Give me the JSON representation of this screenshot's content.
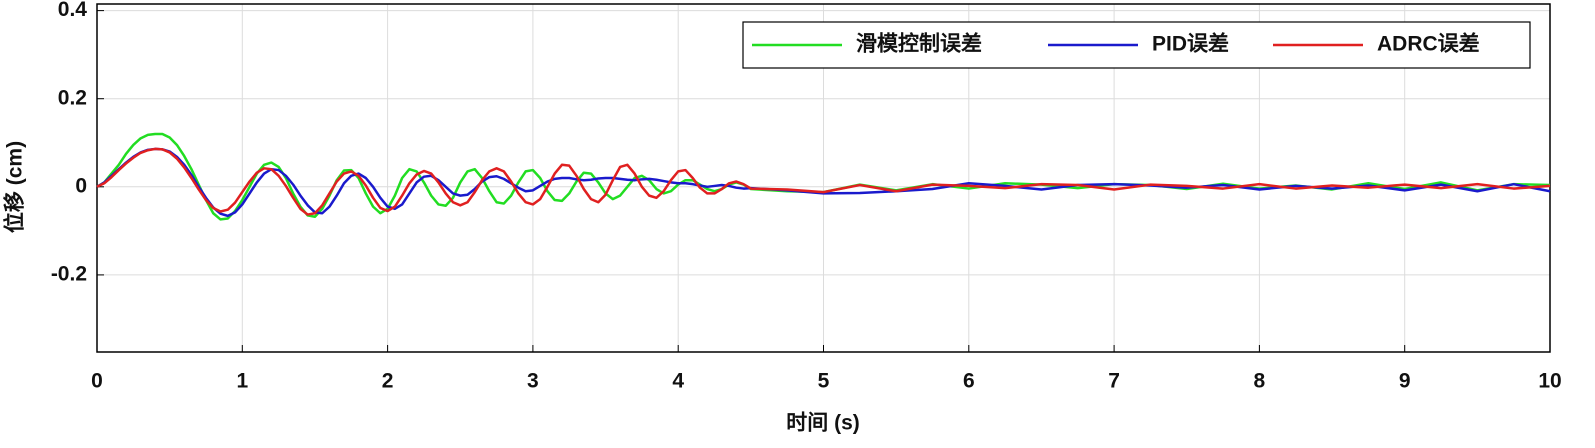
{
  "chart_data": {
    "type": "line",
    "xlabel": "时间 (s)",
    "ylabel": "位移 (cm)",
    "x": [
      0,
      0.05,
      0.1,
      0.15,
      0.2,
      0.25,
      0.3,
      0.35,
      0.4,
      0.45,
      0.5,
      0.55,
      0.6,
      0.65,
      0.7,
      0.75,
      0.8,
      0.85,
      0.9,
      0.95,
      1,
      1.05,
      1.1,
      1.15,
      1.2,
      1.25,
      1.3,
      1.35,
      1.4,
      1.45,
      1.5,
      1.55,
      1.6,
      1.65,
      1.7,
      1.75,
      1.8,
      1.85,
      1.9,
      1.95,
      2,
      2.05,
      2.1,
      2.15,
      2.2,
      2.25,
      2.3,
      2.35,
      2.4,
      2.45,
      2.5,
      2.55,
      2.6,
      2.65,
      2.7,
      2.75,
      2.8,
      2.85,
      2.9,
      2.95,
      3,
      3.05,
      3.1,
      3.15,
      3.2,
      3.25,
      3.3,
      3.35,
      3.4,
      3.45,
      3.5,
      3.55,
      3.6,
      3.65,
      3.7,
      3.75,
      3.8,
      3.85,
      3.9,
      3.95,
      4,
      4.05,
      4.1,
      4.15,
      4.2,
      4.25,
      4.3,
      4.35,
      4.4,
      4.45,
      4.5,
      4.75,
      5,
      5.25,
      5.5,
      5.75,
      6,
      6.25,
      6.5,
      6.75,
      7,
      7.25,
      7.5,
      7.75,
      8,
      8.25,
      8.5,
      8.75,
      9,
      9.25,
      9.5,
      9.75,
      10
    ],
    "series": [
      {
        "name": "滑模控制误差",
        "color": "#22dd22",
        "values": [
          0,
          0.01,
          0.03,
          0.05,
          0.075,
          0.095,
          0.11,
          0.118,
          0.12,
          0.12,
          0.112,
          0.095,
          0.07,
          0.04,
          0.005,
          -0.03,
          -0.06,
          -0.074,
          -0.072,
          -0.055,
          -0.03,
          0,
          0.03,
          0.05,
          0.055,
          0.045,
          0.02,
          -0.015,
          -0.045,
          -0.065,
          -0.068,
          -0.05,
          -0.02,
          0.015,
          0.037,
          0.038,
          0.02,
          -0.015,
          -0.045,
          -0.06,
          -0.05,
          -0.02,
          0.02,
          0.04,
          0.035,
          0.01,
          -0.02,
          -0.04,
          -0.043,
          -0.025,
          0.01,
          0.035,
          0.04,
          0.02,
          -0.01,
          -0.035,
          -0.038,
          -0.02,
          0.01,
          0.035,
          0.038,
          0.02,
          -0.01,
          -0.03,
          -0.032,
          -0.015,
          0.012,
          0.032,
          0.03,
          0.01,
          -0.015,
          -0.028,
          -0.02,
          0,
          0.02,
          0.025,
          0.015,
          -0.005,
          -0.015,
          -0.01,
          0.005,
          0.015,
          0.015,
          0.005,
          -0.005,
          -0.01,
          -0.005,
          0.005,
          0.01,
          0.005,
          -0.005,
          -0.01,
          -0.012,
          0.005,
          -0.008,
          0.006,
          -0.004,
          0.008,
          0.005,
          -0.003,
          0.006,
          0.004,
          -0.005,
          0.007,
          -0.004,
          0.003,
          -0.006,
          0.008,
          -0.005,
          0.01,
          -0.008,
          0.006,
          0.004
        ]
      },
      {
        "name": "PID误差",
        "color": "#1a1acc",
        "values": [
          0,
          0.01,
          0.025,
          0.04,
          0.055,
          0.068,
          0.078,
          0.084,
          0.086,
          0.085,
          0.08,
          0.068,
          0.05,
          0.027,
          0,
          -0.025,
          -0.047,
          -0.061,
          -0.066,
          -0.058,
          -0.04,
          -0.015,
          0.01,
          0.03,
          0.04,
          0.038,
          0.025,
          0.005,
          -0.02,
          -0.042,
          -0.058,
          -0.06,
          -0.045,
          -0.02,
          0.008,
          0.025,
          0.03,
          0.02,
          0,
          -0.025,
          -0.045,
          -0.05,
          -0.04,
          -0.015,
          0.01,
          0.023,
          0.025,
          0.015,
          0,
          -0.015,
          -0.02,
          -0.018,
          -0.005,
          0.012,
          0.022,
          0.024,
          0.018,
          0.008,
          -0.002,
          -0.01,
          -0.008,
          0.002,
          0.012,
          0.018,
          0.02,
          0.02,
          0.017,
          0.015,
          0.016,
          0.019,
          0.02,
          0.02,
          0.018,
          0.016,
          0.015,
          0.017,
          0.018,
          0.016,
          0.013,
          0.01,
          0.008,
          0.008,
          0.006,
          0.003,
          0,
          0.002,
          0.004,
          0.002,
          -0.002,
          -0.004,
          -0.003,
          -0.008,
          -0.015,
          -0.014,
          -0.01,
          -0.005,
          0.008,
          0.002,
          -0.006,
          0.004,
          0.006,
          0.003,
          -0.002,
          0.004,
          -0.006,
          0.002,
          -0.004,
          0.003,
          -0.008,
          0.005,
          -0.01,
          0.006,
          -0.01
        ]
      },
      {
        "name": "ADRC误差",
        "color": "#e02020",
        "values": [
          0,
          0.008,
          0.022,
          0.038,
          0.053,
          0.066,
          0.077,
          0.083,
          0.086,
          0.085,
          0.078,
          0.064,
          0.044,
          0.02,
          -0.006,
          -0.03,
          -0.048,
          -0.056,
          -0.052,
          -0.036,
          -0.012,
          0.012,
          0.032,
          0.042,
          0.04,
          0.025,
          0.002,
          -0.025,
          -0.05,
          -0.063,
          -0.06,
          -0.042,
          -0.015,
          0.012,
          0.03,
          0.035,
          0.025,
          0.003,
          -0.025,
          -0.048,
          -0.055,
          -0.045,
          -0.02,
          0.008,
          0.028,
          0.036,
          0.03,
          0.01,
          -0.015,
          -0.035,
          -0.042,
          -0.035,
          -0.012,
          0.015,
          0.035,
          0.042,
          0.035,
          0.012,
          -0.015,
          -0.035,
          -0.04,
          -0.028,
          0,
          0.03,
          0.05,
          0.048,
          0.025,
          -0.005,
          -0.028,
          -0.035,
          -0.018,
          0.015,
          0.045,
          0.05,
          0.03,
          0,
          -0.02,
          -0.025,
          -0.01,
          0.015,
          0.035,
          0.038,
          0.02,
          -0.002,
          -0.015,
          -0.015,
          -0.005,
          0.008,
          0.012,
          0.006,
          -0.004,
          -0.006,
          -0.012,
          0.004,
          -0.01,
          0.005,
          0.002,
          -0.003,
          0.006,
          0.004,
          -0.006,
          0.005,
          0.002,
          -0.004,
          0.006,
          -0.004,
          0.003,
          -0.002,
          0.005,
          -0.003,
          0.006,
          -0.004,
          0.002
        ]
      }
    ],
    "xlim": [
      0,
      10
    ],
    "xticks": [
      0,
      1,
      2,
      3,
      4,
      5,
      6,
      7,
      8,
      9,
      10
    ],
    "ylim": [
      -0.375,
      0.415
    ],
    "yticks": [
      -0.2,
      0,
      0.2,
      0.4
    ],
    "grid": true,
    "legend": "upper right"
  }
}
